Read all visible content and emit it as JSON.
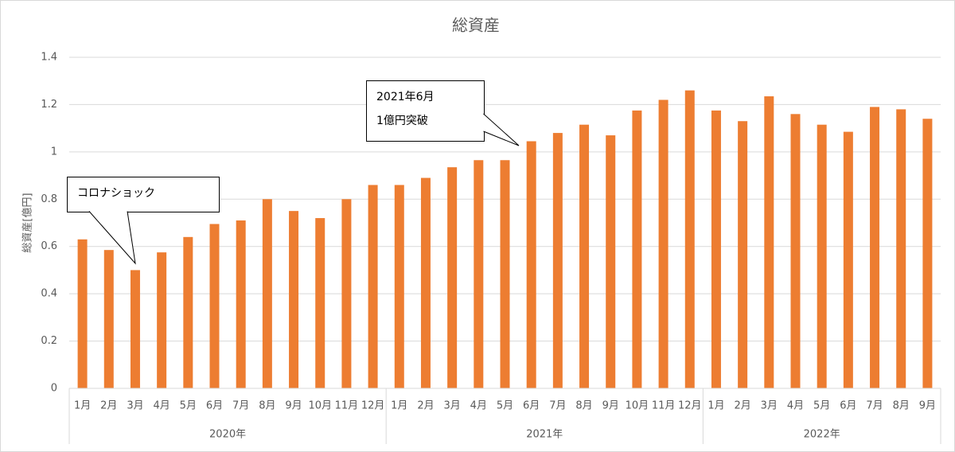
{
  "chart_data": {
    "type": "bar",
    "title": "総資産",
    "y_label": "総資産[億円]",
    "color": "#ed7d31",
    "grid": true,
    "ylim": [
      0,
      1.4
    ],
    "yticks": [
      0,
      0.2,
      0.4,
      0.6,
      0.8,
      1,
      1.2,
      1.4
    ],
    "groups": [
      {
        "label": "2020年",
        "categories": [
          "1月",
          "2月",
          "3月",
          "4月",
          "5月",
          "6月",
          "7月",
          "8月",
          "9月",
          "10月",
          "11月",
          "12月"
        ]
      },
      {
        "label": "2021年",
        "categories": [
          "1月",
          "2月",
          "3月",
          "4月",
          "5月",
          "6月",
          "7月",
          "8月",
          "9月",
          "10月",
          "11月",
          "12月"
        ]
      },
      {
        "label": "2022年",
        "categories": [
          "1月",
          "2月",
          "3月",
          "4月",
          "5月",
          "6月",
          "7月",
          "8月",
          "9月"
        ]
      }
    ],
    "values": [
      0.63,
      0.585,
      0.5,
      0.575,
      0.64,
      0.695,
      0.71,
      0.8,
      0.75,
      0.72,
      0.8,
      0.86,
      0.86,
      0.89,
      0.935,
      0.965,
      0.965,
      1.045,
      1.08,
      1.115,
      1.07,
      1.175,
      1.22,
      1.26,
      1.175,
      1.13,
      1.235,
      1.16,
      1.115,
      1.085,
      1.19,
      1.18,
      1.14
    ],
    "annotations": [
      {
        "text": [
          "コロナショック"
        ]
      },
      {
        "text": [
          "2021年6月",
          "1億円突破"
        ]
      }
    ]
  }
}
